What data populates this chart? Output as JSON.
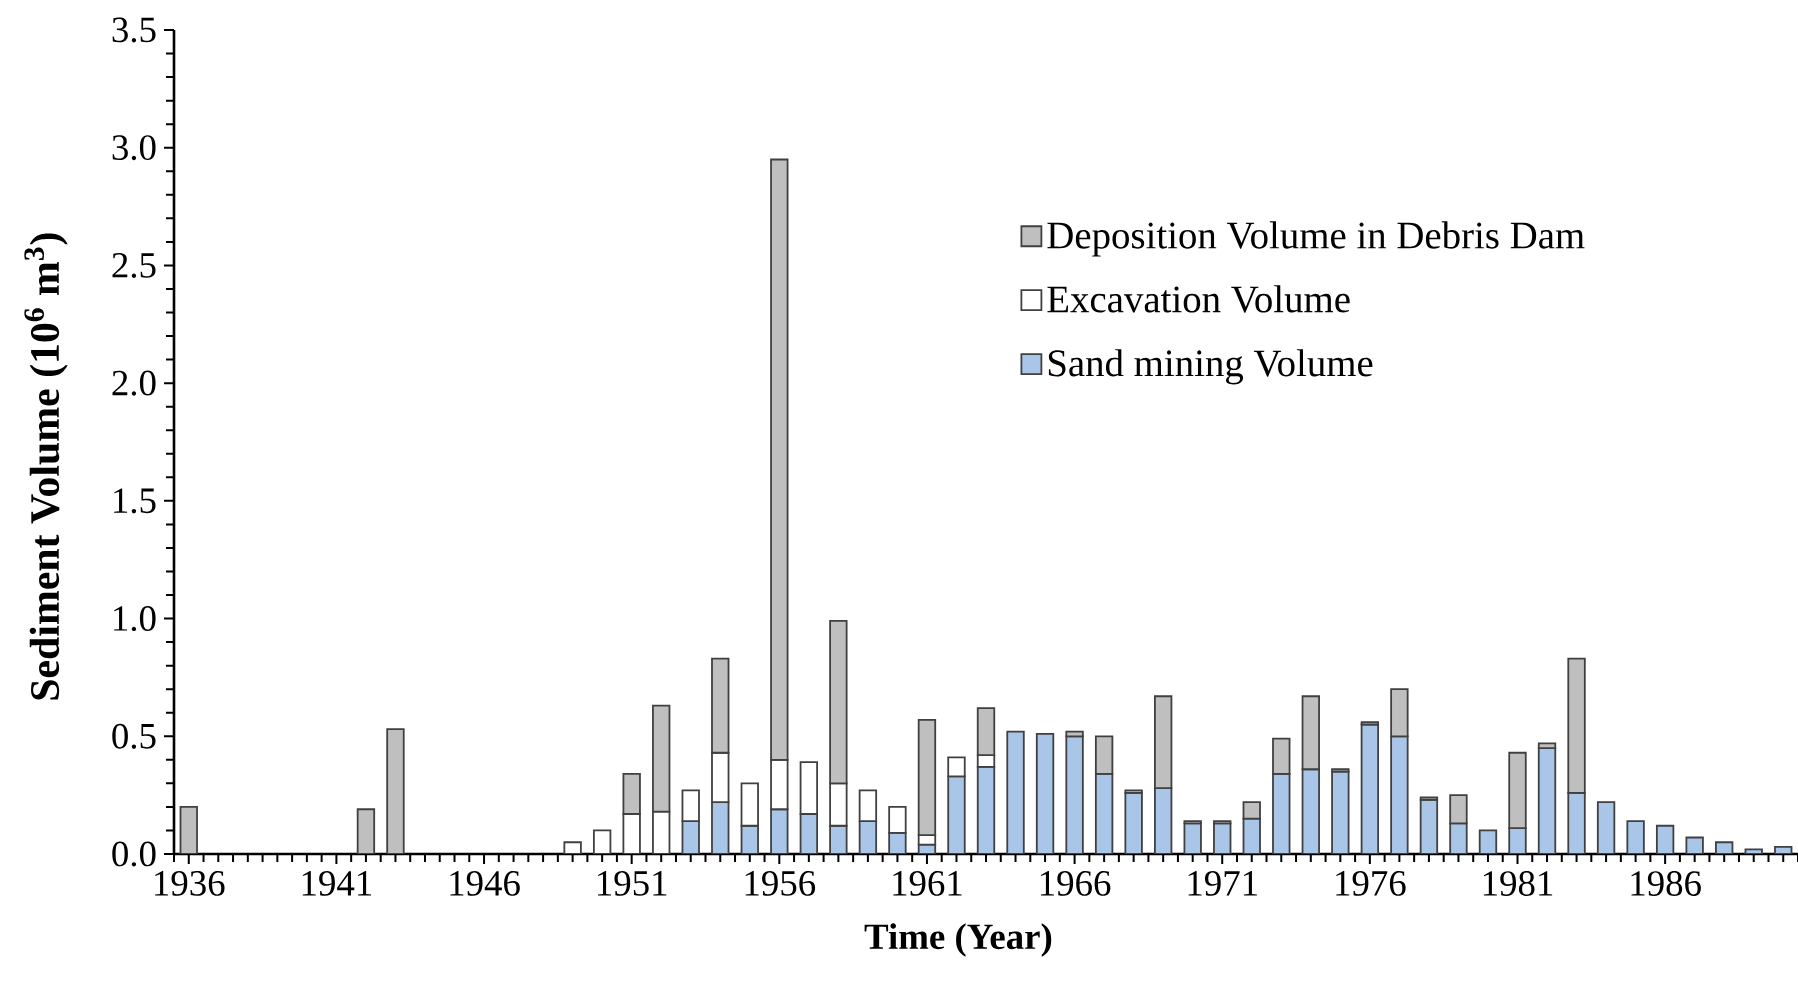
{
  "chart_data": {
    "type": "bar",
    "stacked": true,
    "categories": [
      "1936",
      null,
      null,
      null,
      null,
      "1941",
      null,
      null,
      null,
      null,
      "1946",
      null,
      null,
      null,
      null,
      "1951",
      null,
      null,
      null,
      null,
      "1956",
      null,
      null,
      null,
      null,
      "1961",
      null,
      null,
      null,
      null,
      "1966",
      null,
      null,
      null,
      null,
      "1971",
      null,
      null,
      null,
      null,
      "1976",
      null,
      null,
      null,
      null,
      "1981",
      null,
      null,
      null,
      null,
      "1986",
      null,
      null,
      null,
      null
    ],
    "series": [
      {
        "name": "Sand mining Volume",
        "color": "#a9c5e8",
        "values": [
          null,
          null,
          null,
          null,
          null,
          null,
          null,
          null,
          null,
          null,
          null,
          null,
          null,
          null,
          null,
          null,
          null,
          0.14,
          0.22,
          0.12,
          0.19,
          0.17,
          0.12,
          0.14,
          0.09,
          0.04,
          0.33,
          0.37,
          0.52,
          0.51,
          0.5,
          0.34,
          0.26,
          0.28,
          0.13,
          0.13,
          0.15,
          0.34,
          0.36,
          0.35,
          0.55,
          0.5,
          0.23,
          0.13,
          0.1,
          0.11,
          0.45,
          0.26,
          0.22,
          0.14,
          0.12,
          0.07,
          0.05,
          0.02,
          0.03
        ]
      },
      {
        "name": "Excavation Volume",
        "color": "#ffffff",
        "values": [
          null,
          null,
          null,
          null,
          null,
          null,
          null,
          null,
          null,
          null,
          null,
          null,
          null,
          0.05,
          0.1,
          0.17,
          0.18,
          0.13,
          0.21,
          0.18,
          0.21,
          0.22,
          0.18,
          0.13,
          0.11,
          0.04,
          0.08,
          0.05,
          null,
          null,
          null,
          null,
          null,
          null,
          null,
          null,
          null,
          null,
          null,
          null,
          null,
          null,
          null,
          null,
          null,
          null,
          null,
          null,
          null,
          null,
          null,
          null,
          null,
          null,
          null
        ]
      },
      {
        "name": "Deposition Volume in Debris Dam",
        "color": "#bfbfbf",
        "values": [
          0.2,
          null,
          null,
          null,
          null,
          null,
          0.19,
          0.53,
          null,
          null,
          null,
          null,
          null,
          null,
          null,
          0.17,
          0.45,
          null,
          0.4,
          null,
          2.55,
          null,
          0.69,
          null,
          null,
          0.49,
          null,
          0.2,
          null,
          null,
          0.02,
          0.16,
          0.01,
          0.39,
          0.01,
          0.01,
          0.07,
          0.15,
          0.31,
          0.01,
          0.01,
          0.2,
          0.01,
          0.12,
          null,
          0.32,
          0.02,
          0.57,
          null,
          null,
          null,
          null,
          null,
          null,
          null
        ]
      }
    ],
    "xlabel": "Time (Year)",
    "ylabel": "Sediment Volume (10$^{6}$ m$^{3}$)",
    "ylim": [
      0,
      3.5
    ],
    "yticks": [
      {
        "value": 0,
        "label": "0.0"
      },
      0.5,
      {
        "value": 1,
        "label": "1.0"
      },
      1.5,
      {
        "value": 2,
        "label": "2.0"
      },
      2.5,
      {
        "value": 3,
        "label": "3.0"
      },
      3.5
    ],
    "legend": "top right"
  }
}
